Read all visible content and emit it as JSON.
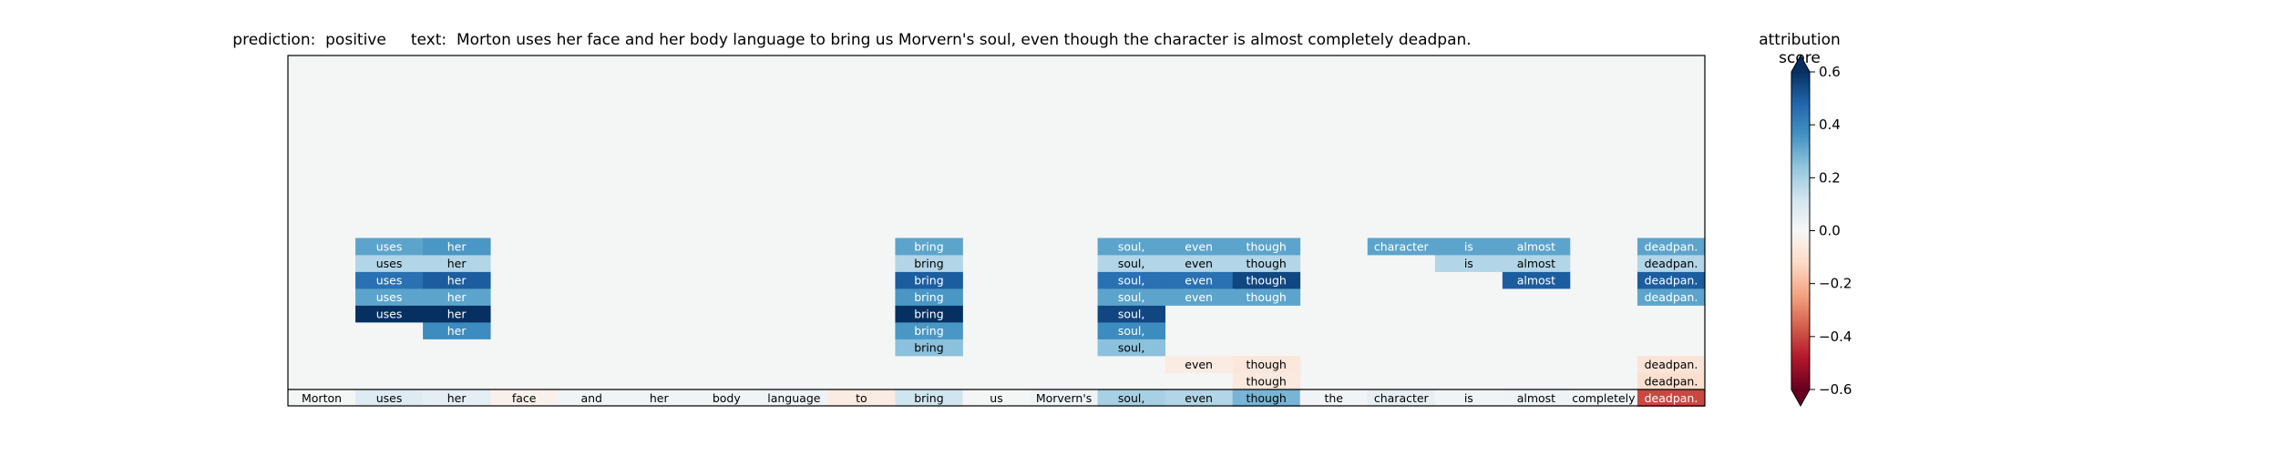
{
  "prediction_label": "prediction:",
  "prediction_value": "positive",
  "text_label": "text:",
  "text_value": "Morton uses her face and her body language to bring us Morvern's soul, even though the character is almost completely deadpan.",
  "chart_data": {
    "type": "heatmap",
    "tokens": [
      "Morton",
      "uses",
      "her",
      "face",
      "and",
      "her",
      "body",
      "language",
      "to",
      "bring",
      "us",
      "Morvern's",
      "soul,",
      "even",
      "though",
      "the",
      "character",
      "is",
      "almost",
      "completely",
      "deadpan."
    ],
    "base_row": [
      0.01,
      0.08,
      0.06,
      -0.03,
      0.02,
      0.02,
      0.02,
      0.03,
      -0.05,
      0.12,
      0.01,
      0.03,
      0.2,
      0.18,
      0.28,
      0.02,
      0.05,
      0.02,
      0.03,
      0.02,
      -0.4
    ],
    "rows_above_base": [
      [
        null,
        null,
        null,
        null,
        null,
        null,
        null,
        null,
        null,
        null,
        null,
        null,
        null,
        null,
        -0.06,
        null,
        null,
        null,
        null,
        null,
        -0.1
      ],
      [
        null,
        null,
        null,
        null,
        null,
        null,
        null,
        null,
        null,
        null,
        null,
        null,
        null,
        -0.05,
        -0.07,
        null,
        null,
        null,
        null,
        null,
        -0.08
      ],
      [
        null,
        null,
        null,
        null,
        null,
        null,
        null,
        null,
        null,
        0.25,
        null,
        null,
        0.25,
        null,
        null,
        null,
        null,
        null,
        null,
        null,
        null
      ],
      [
        null,
        null,
        0.38,
        null,
        null,
        null,
        null,
        null,
        null,
        0.35,
        null,
        null,
        0.38,
        null,
        null,
        null,
        null,
        null,
        null,
        null,
        null
      ],
      [
        null,
        0.6,
        0.6,
        null,
        null,
        null,
        null,
        null,
        null,
        0.6,
        null,
        null,
        0.55,
        null,
        null,
        null,
        null,
        null,
        null,
        null,
        null
      ],
      [
        null,
        0.32,
        0.32,
        null,
        null,
        null,
        null,
        null,
        null,
        0.35,
        null,
        null,
        0.32,
        0.32,
        0.32,
        null,
        null,
        null,
        null,
        null,
        0.32
      ],
      [
        null,
        0.45,
        0.5,
        null,
        null,
        null,
        null,
        null,
        null,
        0.5,
        null,
        null,
        0.45,
        0.45,
        0.55,
        null,
        null,
        null,
        0.5,
        null,
        0.5
      ],
      [
        null,
        0.18,
        0.18,
        null,
        null,
        null,
        null,
        null,
        null,
        0.18,
        null,
        null,
        0.18,
        0.18,
        0.18,
        null,
        null,
        0.18,
        0.18,
        null,
        0.18
      ],
      [
        null,
        0.32,
        0.35,
        null,
        null,
        null,
        null,
        null,
        null,
        0.32,
        null,
        null,
        0.32,
        0.32,
        0.32,
        null,
        0.32,
        0.32,
        0.32,
        null,
        0.32
      ]
    ],
    "colorbar": {
      "label": "attribution score",
      "range": [
        -0.6,
        0.6
      ],
      "ticks": [
        "−0.6",
        "−0.4",
        "−0.2",
        "0.0",
        "0.2",
        "0.4",
        "0.6"
      ],
      "colormap": "RdBu",
      "extend": "both"
    },
    "background_color": "#f4f6f6"
  }
}
